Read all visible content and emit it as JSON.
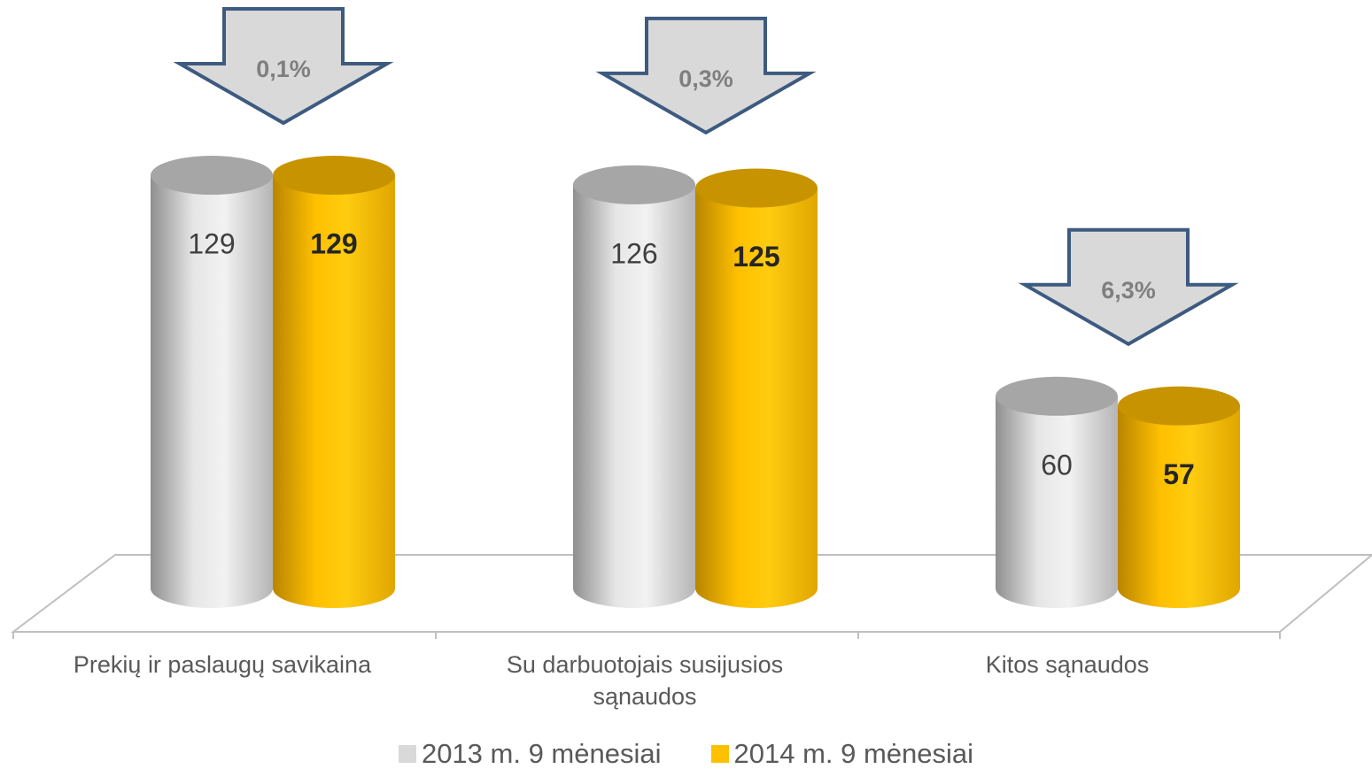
{
  "chart_data": {
    "type": "bar",
    "categories": [
      "Prekių ir paslaugų savikaina",
      "Su darbuotojais susijusios sąnaudos",
      "Kitos sąnaudos"
    ],
    "series": [
      {
        "name": "2013 m. 9 mėnesiai",
        "color": "#d9d9d9",
        "values": [
          129,
          126,
          60
        ]
      },
      {
        "name": "2014 m. 9 mėnesiai",
        "color": "#ffc000",
        "values": [
          129,
          125,
          57
        ]
      }
    ],
    "annotations": [
      "0,1%",
      "0,3%",
      "6,3%"
    ],
    "legend": "bottom"
  }
}
